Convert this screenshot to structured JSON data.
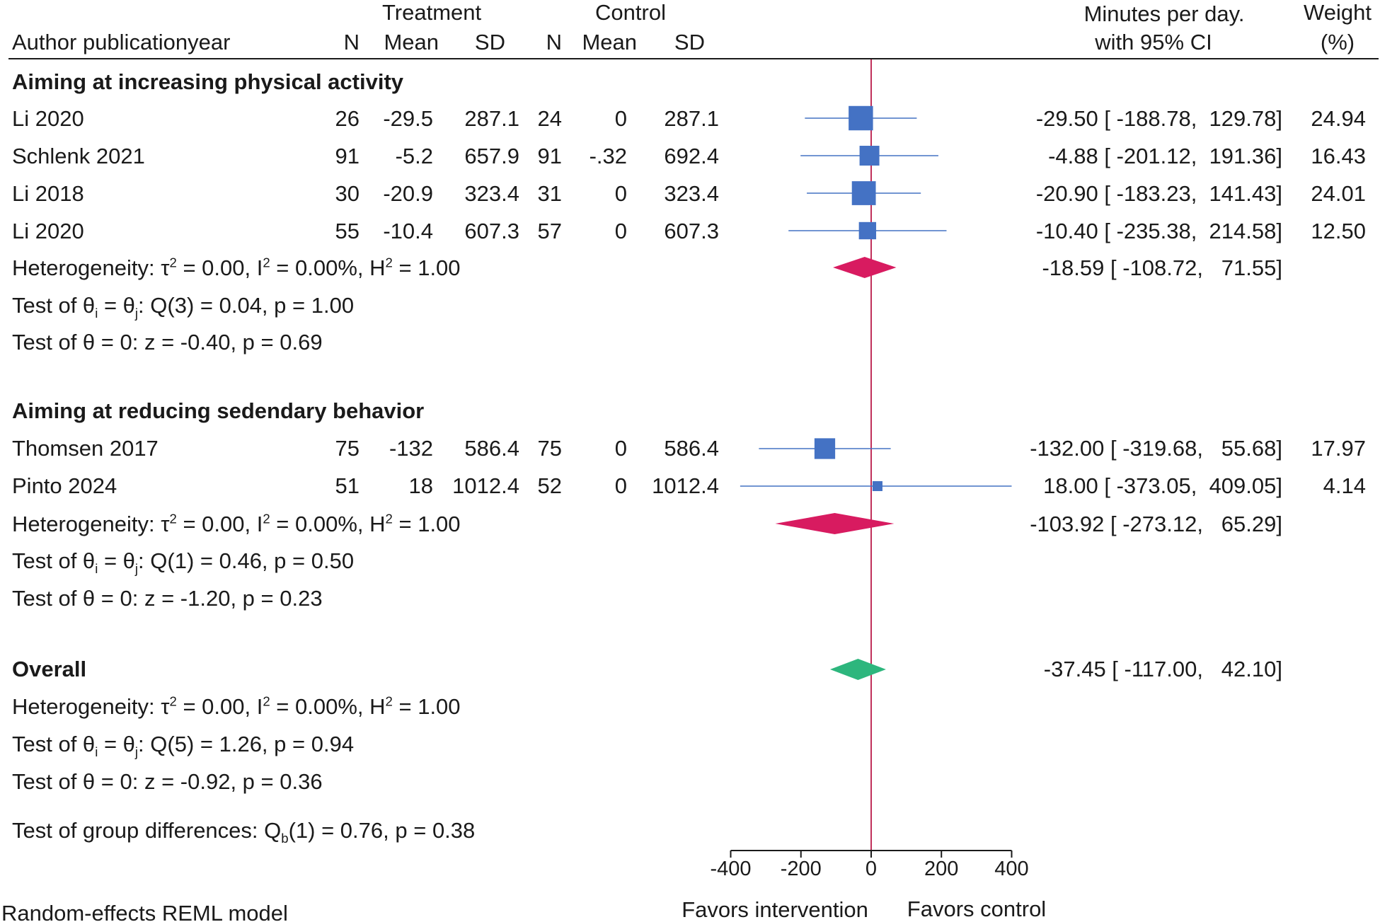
{
  "chart_data": {
    "type": "forest",
    "xlabel_left": "Favors intervention",
    "xlabel_right": "Favors control",
    "xlim": [
      -400,
      400
    ],
    "xticks": [
      -400,
      -200,
      0,
      200,
      400
    ],
    "tick_labels": [
      "-400",
      "-200",
      "0",
      "200",
      "400"
    ],
    "reference_line": 0,
    "colors": {
      "study": "#4472c4",
      "subgroup": "#d81b60",
      "overall": "#2db67d",
      "refline": "#c0305a"
    },
    "header": {
      "author": "Author publicationyear",
      "treatment": "Treatment",
      "control": "Control",
      "n": "N",
      "mean": "Mean",
      "sd": "SD",
      "effect_line1": "Minutes per day.",
      "effect_line2": "with 95% CI",
      "weight_line1": "Weight",
      "weight_line2": "(%)"
    },
    "groups": [
      {
        "title": "Aiming at increasing physical activity",
        "studies": [
          {
            "author": "Li 2020",
            "t_n": "26",
            "t_mean": "-29.5",
            "t_sd": "287.1",
            "c_n": "24",
            "c_mean": "0",
            "c_sd": "287.1",
            "effect": -29.5,
            "lo": -188.78,
            "hi": 129.78,
            "weight": 24.94,
            "ci_text": "-29.50 [ -188.78,  129.78]",
            "weight_text": "24.94"
          },
          {
            "author": "Schlenk 2021",
            "t_n": "91",
            "t_mean": "-5.2",
            "t_sd": "657.9",
            "c_n": "91",
            "c_mean": "-.32",
            "c_sd": "692.4",
            "effect": -4.88,
            "lo": -201.12,
            "hi": 191.36,
            "weight": 16.43,
            "ci_text": "-4.88 [ -201.12,  191.36]",
            "weight_text": "16.43"
          },
          {
            "author": "Li 2018",
            "t_n": "30",
            "t_mean": "-20.9",
            "t_sd": "323.4",
            "c_n": "31",
            "c_mean": "0",
            "c_sd": "323.4",
            "effect": -20.9,
            "lo": -183.23,
            "hi": 141.43,
            "weight": 24.01,
            "ci_text": "-20.90 [ -183.23,  141.43]",
            "weight_text": "24.01"
          },
          {
            "author": "Li 2020",
            "t_n": "55",
            "t_mean": "-10.4",
            "t_sd": "607.3",
            "c_n": "57",
            "c_mean": "0",
            "c_sd": "607.3",
            "effect": -10.4,
            "lo": -235.38,
            "hi": 214.58,
            "weight": 12.5,
            "ci_text": "-10.40 [ -235.38,  214.58]",
            "weight_text": "12.50"
          }
        ],
        "summary": {
          "effect": -18.59,
          "lo": -108.72,
          "hi": 71.55,
          "ci_text": "-18.59 [ -108.72,   71.55]"
        },
        "heterogeneity": "Heterogeneity: τ² = 0.00, I² = 0.00%, H² = 1.00",
        "test_equal": "Test of θi = θj: Q(3) = 0.04, p = 1.00",
        "test_zero": "Test of θ = 0: z = -0.40, p = 0.69"
      },
      {
        "title": "Aiming at reducing sedendary behavior",
        "studies": [
          {
            "author": "Thomsen 2017",
            "t_n": "75",
            "t_mean": "-132",
            "t_sd": "586.4",
            "c_n": "75",
            "c_mean": "0",
            "c_sd": "586.4",
            "effect": -132.0,
            "lo": -319.68,
            "hi": 55.68,
            "weight": 17.97,
            "ci_text": "-132.00 [ -319.68,   55.68]",
            "weight_text": "17.97"
          },
          {
            "author": "Pinto 2024",
            "t_n": "51",
            "t_mean": "18",
            "t_sd": "1012.4",
            "c_n": "52",
            "c_mean": "0",
            "c_sd": "1012.4",
            "effect": 18.0,
            "lo": -373.05,
            "hi": 409.05,
            "weight": 4.14,
            "ci_text": "18.00 [ -373.05,  409.05]",
            "weight_text": "4.14"
          }
        ],
        "summary": {
          "effect": -103.92,
          "lo": -273.12,
          "hi": 65.29,
          "ci_text": "-103.92 [ -273.12,   65.29]"
        },
        "heterogeneity": "Heterogeneity: τ² = 0.00, I² = 0.00%, H² = 1.00",
        "test_equal": "Test of θi = θj: Q(1) = 0.46, p = 0.50",
        "test_zero": "Test of θ = 0: z = -1.20, p = 0.23"
      }
    ],
    "overall": {
      "label": "Overall",
      "effect": -37.45,
      "lo": -117.0,
      "hi": 42.1,
      "ci_text": "-37.45 [ -117.00,   42.10]",
      "heterogeneity": "Heterogeneity: τ² = 0.00, I² = 0.00%, H² = 1.00",
      "test_equal": "Test of θi = θj: Q(5) = 1.26, p = 0.94",
      "test_zero": "Test of θ = 0: z = -0.92, p = 0.36"
    },
    "group_difference": "Test of group differences: Qb(1) = 0.76, p = 0.38",
    "model_note": "Random-effects REML model"
  }
}
